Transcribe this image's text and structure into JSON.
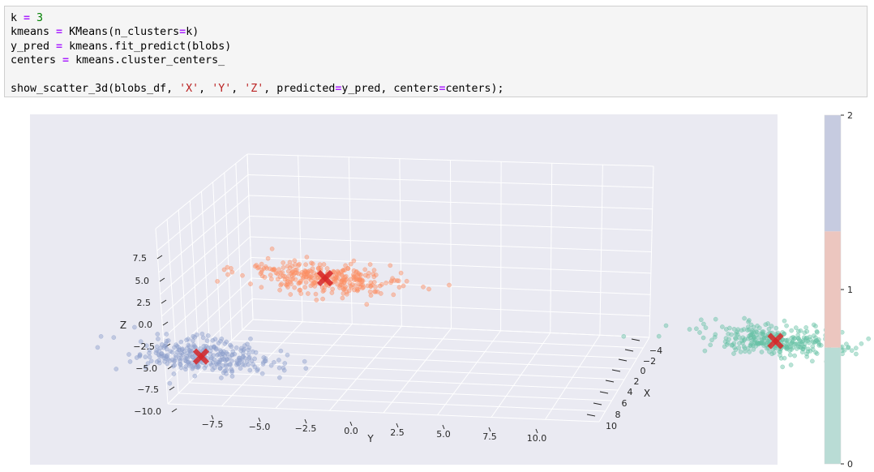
{
  "code": {
    "lines": [
      [
        {
          "t": "k "
        },
        {
          "t": "=",
          "c": "op"
        },
        {
          "t": " "
        },
        {
          "t": "3",
          "c": "num"
        }
      ],
      [
        {
          "t": "kmeans "
        },
        {
          "t": "=",
          "c": "op"
        },
        {
          "t": " KMeans(n_clusters"
        },
        {
          "t": "=",
          "c": "op"
        },
        {
          "t": "k)"
        }
      ],
      [
        {
          "t": "y_pred "
        },
        {
          "t": "=",
          "c": "op"
        },
        {
          "t": " kmeans.fit_predict(blobs)"
        }
      ],
      [
        {
          "t": "centers "
        },
        {
          "t": "=",
          "c": "op"
        },
        {
          "t": " kmeans.cluster_centers_"
        }
      ],
      [],
      [
        {
          "t": "show_scatter_3d(blobs_df, "
        },
        {
          "t": "'X'",
          "c": "str"
        },
        {
          "t": ", "
        },
        {
          "t": "'Y'",
          "c": "str"
        },
        {
          "t": ", "
        },
        {
          "t": "'Z'",
          "c": "str"
        },
        {
          "t": ", predicted"
        },
        {
          "t": "=",
          "c": "op"
        },
        {
          "t": "y_pred, centers"
        },
        {
          "t": "=",
          "c": "op"
        },
        {
          "t": "centers);"
        }
      ]
    ]
  },
  "chart_data": {
    "type": "scatter",
    "projection": "3d",
    "axes": {
      "x": {
        "label": "X",
        "ticks": [
          "−4",
          "−2",
          "0",
          "2",
          "4",
          "6",
          "8",
          "10"
        ]
      },
      "y": {
        "label": "Y",
        "ticks": [
          "−7.5",
          "−5.0",
          "−2.5",
          "0.0",
          "2.5",
          "5.0",
          "7.5",
          "10.0"
        ]
      },
      "z": {
        "label": "Z",
        "ticks": [
          "7.5",
          "5.0",
          "2.5",
          "0.0",
          "−2.5",
          "−5.0",
          "−7.5",
          "−10.0"
        ]
      }
    },
    "grid": true,
    "clusters": [
      {
        "label": 0,
        "color": "#66c2a5",
        "center": {
          "x": 9.0,
          "y": 9.5,
          "z": 7.0
        },
        "point_count": 300
      },
      {
        "label": 1,
        "color": "#fc8d62",
        "center": {
          "x": -0.5,
          "y": -2.5,
          "z": 3.0
        },
        "point_count": 300
      },
      {
        "label": 2,
        "color": "#8da0cb",
        "center": {
          "x": 3.0,
          "y": -5.5,
          "z": -8.0
        },
        "point_count": 300
      }
    ],
    "center_marker": {
      "symbol": "X",
      "color": "#d62728"
    },
    "colorbar": {
      "ticks": [
        "0",
        "1",
        "2"
      ],
      "colors": [
        "#b9dcd5",
        "#ecc6bf",
        "#c6cbe0"
      ]
    }
  }
}
